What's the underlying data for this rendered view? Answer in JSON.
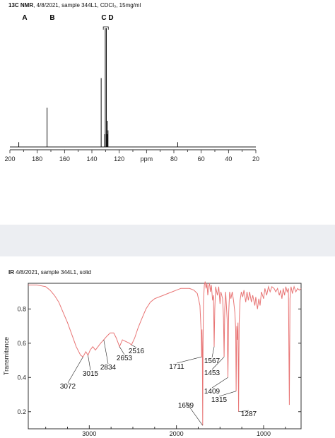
{
  "nmr": {
    "caption_bold": "13C NMR",
    "caption_rest": ", 4/8/2021, sample 344L1, CDCl₃, 15mg/ml",
    "labels": {
      "a": "A",
      "b": "B",
      "cd": "C D"
    },
    "axis_unit": "ppm"
  },
  "ir": {
    "caption_bold": "IR",
    "caption_rest": " 4/8/2021, sample 344L1, solid",
    "ylabel": "Transmitance"
  },
  "chart_data": [
    {
      "type": "line",
      "title": "13C NMR, 4/8/2021, sample 344L1, CDCl₃, 15mg/ml",
      "xlabel": "ppm",
      "xlim": [
        200,
        20
      ],
      "x_ticks": [
        "200",
        "180",
        "160",
        "140",
        "120",
        "ppm",
        "80",
        "60",
        "40",
        "20"
      ],
      "peak_labels": [
        "A",
        "B",
        "C D"
      ],
      "series": [
        {
          "values": [
            {
              "ppm": 193.5,
              "height": 0.04
            },
            {
              "ppm": 172.8,
              "height": 0.33
            },
            {
              "ppm": 133.2,
              "height": 0.58
            },
            {
              "ppm": 130.2,
              "height": 1.0
            },
            {
              "ppm": 129.4,
              "height": 1.0
            },
            {
              "ppm": 128.6,
              "height": 0.22
            },
            {
              "ppm": 128.2,
              "height": 0.14
            },
            {
              "ppm": 77.2,
              "height": 0.04
            }
          ]
        }
      ]
    },
    {
      "type": "line",
      "title": "IR 4/8/2021, sample 344L1, solid",
      "xlabel": "",
      "ylabel": "Transmitance",
      "xlim": [
        3700,
        570
      ],
      "ylim": [
        0.1,
        0.95
      ],
      "x_ticks": [
        3000,
        2000,
        1000
      ],
      "y_ticks": [
        0.2,
        0.4,
        0.6,
        0.8
      ],
      "peak_labels": [
        3072,
        3015,
        2834,
        2653,
        2516,
        1711,
        1699,
        1567,
        1453,
        1409,
        1315,
        1287
      ],
      "series": [
        {
          "values": [
            [
              3700,
              0.94
            ],
            [
              3600,
              0.94
            ],
            [
              3500,
              0.93
            ],
            [
              3450,
              0.91
            ],
            [
              3400,
              0.88
            ],
            [
              3350,
              0.84
            ],
            [
              3300,
              0.78
            ],
            [
              3250,
              0.72
            ],
            [
              3200,
              0.65
            ],
            [
              3150,
              0.58
            ],
            [
              3100,
              0.53
            ],
            [
              3072,
              0.52
            ],
            [
              3040,
              0.55
            ],
            [
              3015,
              0.53
            ],
            [
              2990,
              0.56
            ],
            [
              2960,
              0.58
            ],
            [
              2930,
              0.56
            ],
            [
              2900,
              0.58
            ],
            [
              2870,
              0.6
            ],
            [
              2834,
              0.62
            ],
            [
              2800,
              0.64
            ],
            [
              2760,
              0.66
            ],
            [
              2720,
              0.66
            ],
            [
              2690,
              0.63
            ],
            [
              2653,
              0.58
            ],
            [
              2620,
              0.62
            ],
            [
              2580,
              0.61
            ],
            [
              2540,
              0.6
            ],
            [
              2516,
              0.59
            ],
            [
              2480,
              0.63
            ],
            [
              2440,
              0.69
            ],
            [
              2400,
              0.74
            ],
            [
              2350,
              0.8
            ],
            [
              2300,
              0.84
            ],
            [
              2250,
              0.86
            ],
            [
              2200,
              0.87
            ],
            [
              2150,
              0.88
            ],
            [
              2100,
              0.89
            ],
            [
              2050,
              0.9
            ],
            [
              2000,
              0.91
            ],
            [
              1950,
              0.92
            ],
            [
              1900,
              0.92
            ],
            [
              1850,
              0.92
            ],
            [
              1800,
              0.91
            ],
            [
              1760,
              0.89
            ],
            [
              1730,
              0.82
            ],
            [
              1715,
              0.65
            ],
            [
              1711,
              0.52
            ],
            [
              1707,
              0.68
            ],
            [
              1703,
              0.55
            ],
            [
              1699,
              0.12
            ],
            [
              1695,
              0.6
            ],
            [
              1690,
              0.84
            ],
            [
              1680,
              0.94
            ],
            [
              1670,
              0.96
            ],
            [
              1660,
              0.92
            ],
            [
              1650,
              0.95
            ],
            [
              1640,
              0.88
            ],
            [
              1630,
              0.93
            ],
            [
              1620,
              0.95
            ],
            [
              1610,
              0.9
            ],
            [
              1600,
              0.94
            ],
            [
              1585,
              0.85
            ],
            [
              1575,
              0.88
            ],
            [
              1567,
              0.58
            ],
            [
              1560,
              0.8
            ],
            [
              1550,
              0.93
            ],
            [
              1530,
              0.88
            ],
            [
              1515,
              0.93
            ],
            [
              1500,
              0.83
            ],
            [
              1490,
              0.9
            ],
            [
              1470,
              0.86
            ],
            [
              1460,
              0.75
            ],
            [
              1453,
              0.52
            ],
            [
              1446,
              0.8
            ],
            [
              1435,
              0.9
            ],
            [
              1425,
              0.8
            ],
            [
              1418,
              0.74
            ],
            [
              1409,
              0.4
            ],
            [
              1400,
              0.78
            ],
            [
              1390,
              0.9
            ],
            [
              1375,
              0.86
            ],
            [
              1360,
              0.9
            ],
            [
              1345,
              0.85
            ],
            [
              1330,
              0.78
            ],
            [
              1320,
              0.68
            ],
            [
              1315,
              0.32
            ],
            [
              1308,
              0.7
            ],
            [
              1300,
              0.62
            ],
            [
              1294,
              0.72
            ],
            [
              1287,
              0.2
            ],
            [
              1280,
              0.72
            ],
            [
              1270,
              0.85
            ],
            [
              1255,
              0.9
            ],
            [
              1240,
              0.87
            ],
            [
              1225,
              0.91
            ],
            [
              1205,
              0.84
            ],
            [
              1190,
              0.9
            ],
            [
              1175,
              0.85
            ],
            [
              1160,
              0.9
            ],
            [
              1140,
              0.84
            ],
            [
              1125,
              0.88
            ],
            [
              1100,
              0.82
            ],
            [
              1090,
              0.87
            ],
            [
              1070,
              0.8
            ],
            [
              1055,
              0.86
            ],
            [
              1040,
              0.82
            ],
            [
              1025,
              0.9
            ],
            [
              1000,
              0.86
            ],
            [
              985,
              0.92
            ],
            [
              965,
              0.88
            ],
            [
              945,
              0.93
            ],
            [
              925,
              0.9
            ],
            [
              905,
              0.93
            ],
            [
              880,
              0.92
            ],
            [
              860,
              0.9
            ],
            [
              840,
              0.92
            ],
            [
              820,
              0.88
            ],
            [
              805,
              0.91
            ],
            [
              790,
              0.86
            ],
            [
              775,
              0.92
            ],
            [
              760,
              0.88
            ],
            [
              745,
              0.93
            ],
            [
              730,
              0.9
            ],
            [
              715,
              0.92
            ],
            [
              705,
              0.24
            ],
            [
              697,
              0.86
            ],
            [
              685,
              0.93
            ],
            [
              670,
              0.89
            ],
            [
              650,
              0.93
            ],
            [
              630,
              0.9
            ],
            [
              610,
              0.92
            ],
            [
              590,
              0.91
            ],
            [
              570,
              0.92
            ]
          ]
        }
      ]
    }
  ]
}
